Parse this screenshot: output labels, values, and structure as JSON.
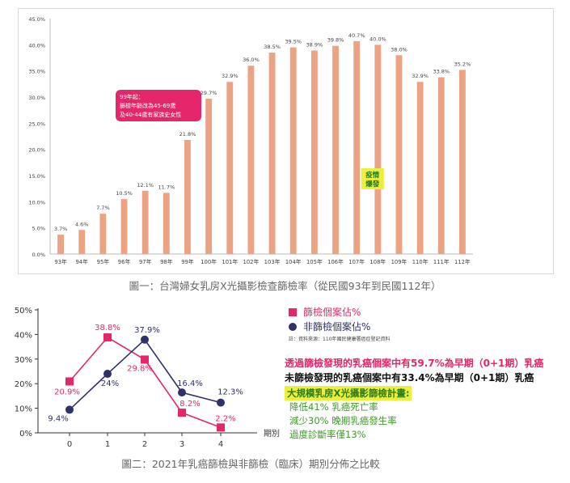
{
  "chart_data": [
    {
      "type": "bar",
      "categories": [
        "93年",
        "94年",
        "95年",
        "96年",
        "97年",
        "98年",
        "99年",
        "100年",
        "101年",
        "102年",
        "103年",
        "104年",
        "105年",
        "106年",
        "107年",
        "108年",
        "109年",
        "110年",
        "111年",
        "112年"
      ],
      "values": [
        3.7,
        4.6,
        7.7,
        10.5,
        12.1,
        11.7,
        21.8,
        29.7,
        32.9,
        36.0,
        38.5,
        39.5,
        38.9,
        39.8,
        40.7,
        40.0,
        38.0,
        32.9,
        33.8,
        35.2
      ],
      "value_labels": [
        "3.7%",
        "4.6%",
        "7.7%",
        "10.5%",
        "12.1%",
        "11.7%",
        "21.8%",
        "29.7%",
        "32.9%",
        "36.0%",
        "38.5%",
        "39.5%",
        "38.9%",
        "39.8%",
        "40.7%",
        "40.0%",
        "38.0%",
        "32.9%",
        "33.8%",
        "35.2%"
      ],
      "ylim": [
        0,
        45
      ],
      "yticks": [
        "0.0%",
        "5.0%",
        "10.0%",
        "15.0%",
        "20.0%",
        "25.0%",
        "30.0%",
        "35.0%",
        "40.0%",
        "45.0%"
      ],
      "grid": false,
      "bar_color": "#eba383",
      "annotations": {
        "policy_lines": [
          "99年起：",
          "篩檢年齡改為45-69歲",
          "及40-44歲有家族史女性"
        ],
        "policy_color": "#e6266a",
        "pandemic_lines": [
          "疫情",
          "爆發"
        ],
        "pandemic_color": "#ecef3c"
      },
      "caption": "圖一：台灣婦女乳房X光攝影檢查篩檢率（從民國93年到民國112年）"
    },
    {
      "type": "line",
      "x": [
        0,
        1,
        2,
        3,
        4
      ],
      "xticks": [
        "0",
        "1",
        "2",
        "3",
        "4"
      ],
      "xlabel": "期別",
      "ylim": [
        0,
        50
      ],
      "yticks": [
        "0%",
        "10%",
        "20%",
        "30%",
        "40%",
        "50%"
      ],
      "series": [
        {
          "name": "篩檢個案佔%",
          "values": [
            20.9,
            38.8,
            29.8,
            8.2,
            2.2
          ],
          "labels": [
            "20.9%",
            "38.8%",
            "29.8%",
            "8.2%",
            "2.2%"
          ],
          "color": "#e6266a",
          "marker": "square"
        },
        {
          "name": "非篩檢個案佔%",
          "values": [
            9.4,
            24,
            37.9,
            16.4,
            12.3
          ],
          "labels": [
            "9.4%",
            "24%",
            "37.9%",
            "16.4%",
            "12.3%"
          ],
          "color": "#2f3168",
          "marker": "circle"
        }
      ],
      "caption": "圖二：2021年乳癌篩檢與非篩檢（臨床）期別分佈之比較"
    }
  ],
  "side_text": {
    "source": "註：資料來源：110年國民健康署癌症登記資料",
    "note1": "透過篩檢發現的乳癌個案中有59.7%為早期（0+1期）乳癌",
    "note2": "未篩檢發現的乳癌個案中有33.4%為早期（0+1期）乳癌",
    "plan_title": "大規模乳房X光攝影篩檢計畫:",
    "plan_items": [
      "降低41% 乳癌死亡率",
      "減少30% 晚期乳癌發生率",
      "過度診斷率僅13%"
    ]
  }
}
